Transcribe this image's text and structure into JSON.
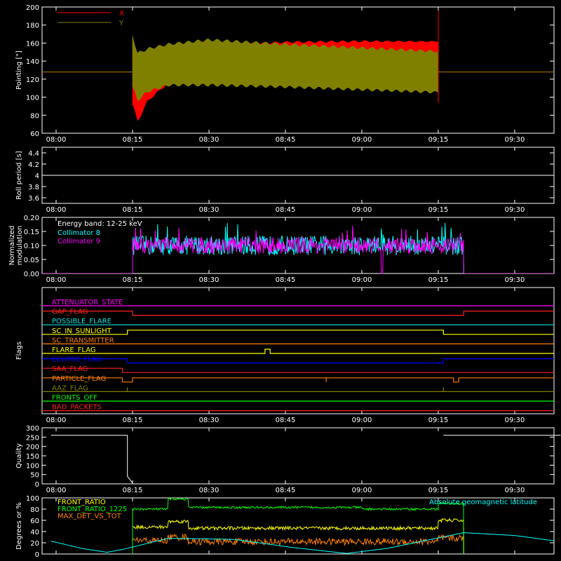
{
  "time_ticks": [
    "08:00",
    "08:15",
    "08:30",
    "08:45",
    "09:00",
    "09:15",
    "09:30"
  ],
  "chart_data": [
    {
      "type": "line",
      "ylabel": "Pointing [\"]",
      "ylim": [
        60,
        200
      ],
      "yticks": [
        60,
        80,
        100,
        120,
        140,
        160,
        180,
        200
      ],
      "legend": {
        "placement": "top-left"
      },
      "series": [
        {
          "name": "X",
          "color": "#ff0000",
          "baseline": 128,
          "start": "08:15",
          "end": "09:15",
          "envelope_time": [
            "08:15",
            "08:16",
            "08:18",
            "08:22",
            "08:30",
            "08:45",
            "09:00",
            "09:15"
          ],
          "envelope_upper": [
            168,
            125,
            140,
            150,
            158,
            162,
            163,
            162
          ],
          "envelope_lower": [
            90,
            72,
            95,
            115,
            120,
            124,
            125,
            148
          ]
        },
        {
          "name": "Y",
          "color": "#808000",
          "baseline": 128,
          "start": "08:15",
          "end": "09:15",
          "envelope_time": [
            "08:15",
            "08:16",
            "08:18",
            "08:22",
            "08:30",
            "08:45",
            "09:00",
            "09:15"
          ],
          "envelope_upper": [
            170,
            150,
            155,
            160,
            165,
            160,
            156,
            152
          ],
          "envelope_lower": [
            110,
            95,
            105,
            112,
            112,
            110,
            107,
            104
          ]
        }
      ]
    },
    {
      "type": "line",
      "ylabel": "Roll period [s]",
      "ylim": [
        3.5,
        4.5
      ],
      "yticks": [
        3.6,
        3.8,
        4.0,
        4.2,
        4.4
      ],
      "series": [
        {
          "color": "#ffffff",
          "x": [
            "07:59",
            "09:39"
          ],
          "y": [
            4.0,
            4.0
          ]
        }
      ]
    },
    {
      "type": "line",
      "ylabel": "Normalized modulation",
      "ylim": [
        0,
        0.2
      ],
      "yticks": [
        "0.00",
        "0.05",
        "0.10",
        "0.15",
        "0.20"
      ],
      "legend": {
        "title": "Energy band: 12-25 keV",
        "placement": "top-left"
      },
      "series": [
        {
          "name": "Collimator 8",
          "color": "#00ffff",
          "start": "08:15",
          "end": "09:20",
          "level": 0.1,
          "spread": 0.035
        },
        {
          "name": "Collimator 9",
          "color": "#ff00ff",
          "start": "08:15",
          "end": "09:20",
          "level": 0.1,
          "spread": 0.03,
          "dip_time": "09:04"
        }
      ]
    },
    {
      "type": "line",
      "ylabel": "Flags",
      "series": [
        {
          "name": "ATTENUATOR_STATE",
          "color": "#ff00ff",
          "transitions": []
        },
        {
          "name": "GAP_FLAG",
          "color": "#ff2020",
          "initial": 1,
          "transitions": [
            [
              "08:15",
              0
            ],
            [
              "09:20",
              1
            ]
          ]
        },
        {
          "name": "POSSIBLE_FLARE",
          "color": "#00e0e0",
          "transitions": []
        },
        {
          "name": "SC_IN_SUNLIGHT",
          "color": "#ffff00",
          "initial": 0,
          "transitions": [
            [
              "08:14",
              1
            ],
            [
              "09:16",
              0
            ]
          ]
        },
        {
          "name": "SC_TRANSMITTER",
          "color": "#ff7f00",
          "transitions": []
        },
        {
          "name": "FLARE_FLAG",
          "color": "#ffff00",
          "initial": 0,
          "transitions": [
            [
              "08:41",
              1
            ],
            [
              "08:42",
              0
            ]
          ]
        },
        {
          "name": "ECLIPSE_FLAG",
          "color": "#0000ff",
          "initial": 1,
          "transitions": [
            [
              "08:14",
              0
            ],
            [
              "09:16",
              1
            ]
          ]
        },
        {
          "name": "SAA_FLAG",
          "color": "#ff2020",
          "initial": 1,
          "transitions": [
            [
              "08:13",
              0
            ]
          ]
        },
        {
          "name": "PARTICLE_FLAG",
          "color": "#ff7f00",
          "initial": 1,
          "transitions": [
            [
              "08:13",
              0
            ],
            [
              "08:15",
              1
            ],
            [
              "08:53",
              0
            ],
            [
              "08:53",
              1
            ],
            [
              "09:18",
              0
            ],
            [
              "09:19",
              1
            ]
          ]
        },
        {
          "name": "AAZ_FLAG",
          "color": "#808000",
          "initial": 0,
          "transitions": [
            [
              "08:14",
              1
            ],
            [
              "08:14",
              0
            ],
            [
              "09:16",
              1
            ],
            [
              "09:16",
              0
            ]
          ]
        },
        {
          "name": "FRONTS_OFF",
          "color": "#00ff00",
          "transitions": []
        },
        {
          "name": "BAD_PACKETS",
          "color": "#ff2020",
          "transitions": []
        }
      ]
    },
    {
      "type": "line",
      "ylabel": "Quality",
      "ylim": [
        0,
        300
      ],
      "yticks": [
        0,
        50,
        100,
        150,
        200,
        250,
        300
      ],
      "series": [
        {
          "color": "#ffffff",
          "x": [
            "07:59",
            "08:14",
            "08:14",
            "08:15",
            "08:15",
            "09:16",
            "09:16",
            "09:39"
          ],
          "y": [
            260,
            260,
            40,
            5,
            null,
            null,
            260,
            260
          ]
        }
      ]
    },
    {
      "type": "line",
      "ylabel": "Degrees or %",
      "ylim": [
        0,
        100
      ],
      "yticks": [
        0,
        20,
        40,
        60,
        80,
        100
      ],
      "series": [
        {
          "name": "FRONT_RATIO",
          "color": "#ffff00",
          "steps": [
            [
              "08:15",
              48
            ],
            [
              "08:22",
              58
            ],
            [
              "08:26",
              46
            ],
            [
              "09:15",
              60
            ],
            [
              "09:20",
              null
            ]
          ]
        },
        {
          "name": "FRONT_RATIO_1225",
          "color": "#00ff00",
          "steps": [
            [
              "08:15",
              80
            ],
            [
              "08:22",
              98
            ],
            [
              "08:26",
              83
            ],
            [
              "09:00",
              80
            ],
            [
              "09:15",
              90
            ],
            [
              "09:20",
              null
            ]
          ]
        },
        {
          "name": "MAX_DET_VS_TOT",
          "color": "#ff7f00",
          "steps": [
            [
              "08:15",
              24
            ],
            [
              "08:22",
              30
            ],
            [
              "08:26",
              22
            ],
            [
              "09:15",
              28
            ],
            [
              "09:20",
              null
            ]
          ]
        },
        {
          "name": "Absolute geomagnetic latitude",
          "color": "#00ffff",
          "legend_placement": "top-right",
          "x": [
            "07:59",
            "08:05",
            "08:10",
            "08:13",
            "08:22",
            "08:35",
            "08:46",
            "08:57",
            "09:05",
            "09:20",
            "09:30",
            "09:39"
          ],
          "y": [
            23,
            10,
            3,
            8,
            28,
            26,
            12,
            1,
            10,
            38,
            33,
            22
          ]
        }
      ]
    }
  ]
}
